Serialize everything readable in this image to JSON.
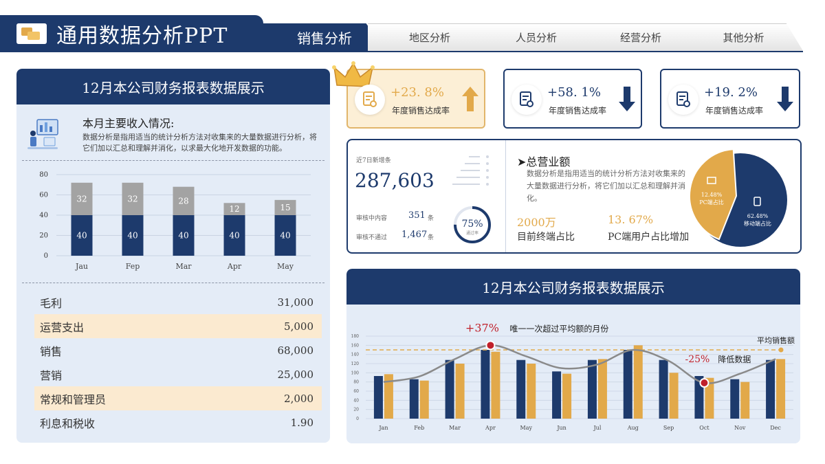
{
  "header": {
    "title": "通用数据分析PPT",
    "tabs": [
      "销售分析",
      "地区分析",
      "人员分析",
      "经营分析",
      "其他分析"
    ],
    "active_tab": 0
  },
  "left_panel": {
    "title": "12月本公司财务报表数据展示",
    "intro_title": "本月主要收入情况:",
    "intro_text": "数据分析是指用适当的统计分析方法对收集来的大量数据进行分析，将它们加以汇总和理解并消化，以求最大化地开发数据的功能。",
    "finance_rows": [
      {
        "label": "毛利",
        "value": "31,000",
        "highlight": false
      },
      {
        "label": "运营支出",
        "value": "5,000",
        "highlight": true
      },
      {
        "label": "销售",
        "value": "68,000",
        "highlight": false
      },
      {
        "label": "营销",
        "value": "25,000",
        "highlight": false
      },
      {
        "label": "常规和管理员",
        "value": "2,000",
        "highlight": true
      },
      {
        "label": "利息和税收",
        "value": "1.90",
        "highlight": false
      }
    ]
  },
  "kpis": [
    {
      "value": "+23. 8%",
      "label": "年度销售达成率",
      "arrow": "up",
      "style": "gold"
    },
    {
      "value": "+58. 1%",
      "label": "年度销售达成率",
      "arrow": "down",
      "style": "plain"
    },
    {
      "value": "+19. 2%",
      "label": "年度销售达成率",
      "arrow": "down",
      "style": "plain"
    }
  ],
  "summary": {
    "new_label": "近7日新增条",
    "new_value": "287,603",
    "reviewing_label": "审核中内容",
    "reviewing_value": "351",
    "rejected_label": "审核不通过",
    "rejected_value": "1,467",
    "unit": "条",
    "progress_value": "75%",
    "progress_label": "通过率",
    "progress_fraction": 0.75,
    "total_title": "总营业额",
    "total_text": "数据分析是指用适当的统计分析方法对收集来的大量数据进行分析，将它们加以汇总和理解并消化。",
    "pct_a": "2000万",
    "pct_a_label": "目前终端占比",
    "pct_b": "13. 67%",
    "pct_b_label": "PC端用户占比增加",
    "pie": [
      {
        "label": "PC端占比",
        "value": "12.48%",
        "color": "#e2a94a"
      },
      {
        "label": "移动端占比",
        "value": "62.48%",
        "color": "#1d3a6c"
      }
    ]
  },
  "bottom": {
    "title": "12月本公司财务报表数据展示",
    "avg_label": "平均销售额",
    "ann_up_value": "+37%",
    "ann_up_text": "唯一一次超过平均额的月份",
    "ann_down_value": "-25%",
    "ann_down_text": "降低数据"
  },
  "chart_data": [
    {
      "type": "bar",
      "stacked": true,
      "categories": [
        "Jau",
        "Fep",
        "Mar",
        "Apr",
        "May"
      ],
      "series": [
        {
          "values": [
            40,
            40,
            40,
            40,
            40
          ],
          "color": "#1d3a6c"
        },
        {
          "values": [
            32,
            32,
            28,
            12,
            15
          ],
          "color": "#a3a3a3"
        }
      ],
      "ylim": [
        0,
        80
      ],
      "yticks": [
        0,
        20,
        40,
        60,
        80
      ],
      "grid": true
    },
    {
      "type": "bar",
      "categories": [
        "Jan",
        "Feb",
        "Mar",
        "Apr",
        "May",
        "Jun",
        "Jul",
        "Aug",
        "Sep",
        "Oct",
        "Nov",
        "Dec"
      ],
      "series": [
        {
          "values": [
            93,
            86,
            128,
            150,
            128,
            103,
            128,
            150,
            128,
            93,
            86,
            128
          ],
          "color": "#1d3a6c"
        },
        {
          "values": [
            97,
            83,
            120,
            146,
            120,
            98,
            130,
            160,
            100,
            89,
            80,
            130
          ],
          "color": "#e2a94a"
        }
      ],
      "trend_line": [
        80,
        92,
        130,
        160,
        136,
        110,
        118,
        150,
        126,
        78,
        98,
        130
      ],
      "average": 150,
      "ylim": [
        0,
        180
      ],
      "yticks": [
        0,
        20,
        40,
        60,
        80,
        100,
        120,
        140,
        160,
        180
      ],
      "grid": true
    }
  ]
}
